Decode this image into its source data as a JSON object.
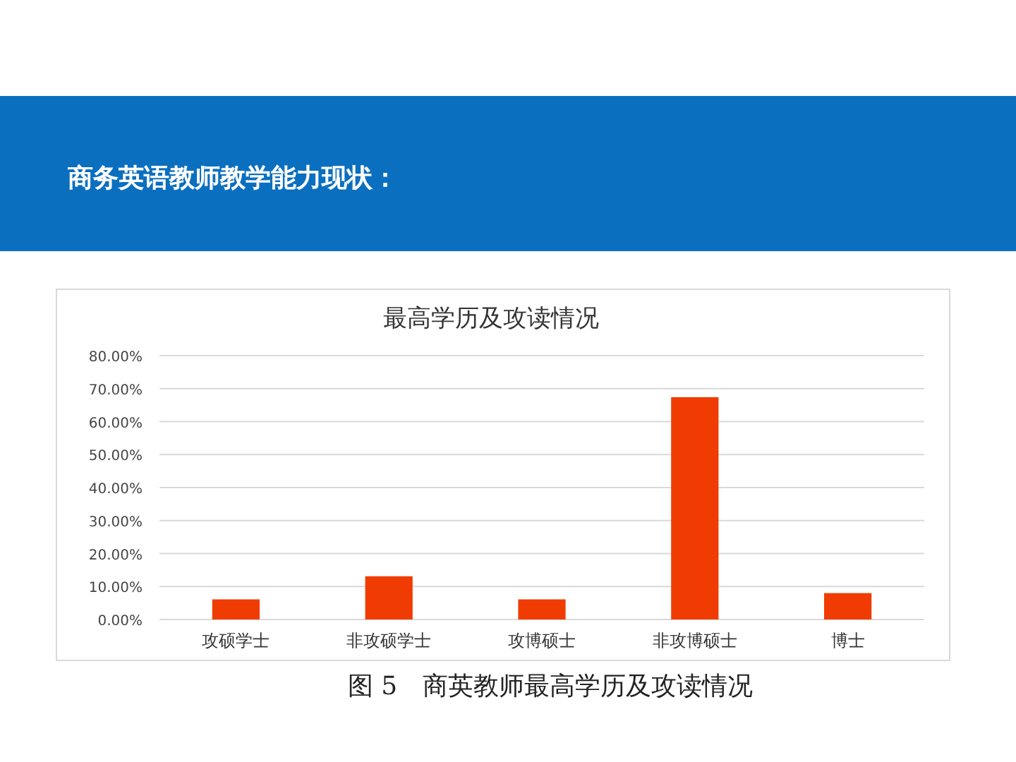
{
  "chart_data": {
    "type": "bar",
    "title": "最高学历及攻读情况",
    "categories": [
      "攻硕学士",
      "非攻硕学士",
      "攻博硕士",
      "非攻博硕士",
      "博士"
    ],
    "values": [
      6.1,
      13.1,
      6.1,
      67.4,
      8.0
    ],
    "color": "#f03c02",
    "ylim": [
      0,
      80
    ],
    "yticks": [
      {
        "value": 0,
        "label": "0.00%"
      },
      {
        "value": 10,
        "label": "10.00%"
      },
      {
        "value": 20,
        "label": "20.00%"
      },
      {
        "value": 30,
        "label": "30.00%"
      },
      {
        "value": 40,
        "label": "40.00%"
      },
      {
        "value": 50,
        "label": "50.00%"
      },
      {
        "value": 60,
        "label": "60.00%"
      },
      {
        "value": 70,
        "label": "70.00%"
      },
      {
        "value": 80,
        "label": "80.00%"
      }
    ],
    "grid": "y",
    "annotations": [
      "商务英语教师教学能力现状：",
      "图 5　商英教师最高学历及攻读情况"
    ]
  }
}
